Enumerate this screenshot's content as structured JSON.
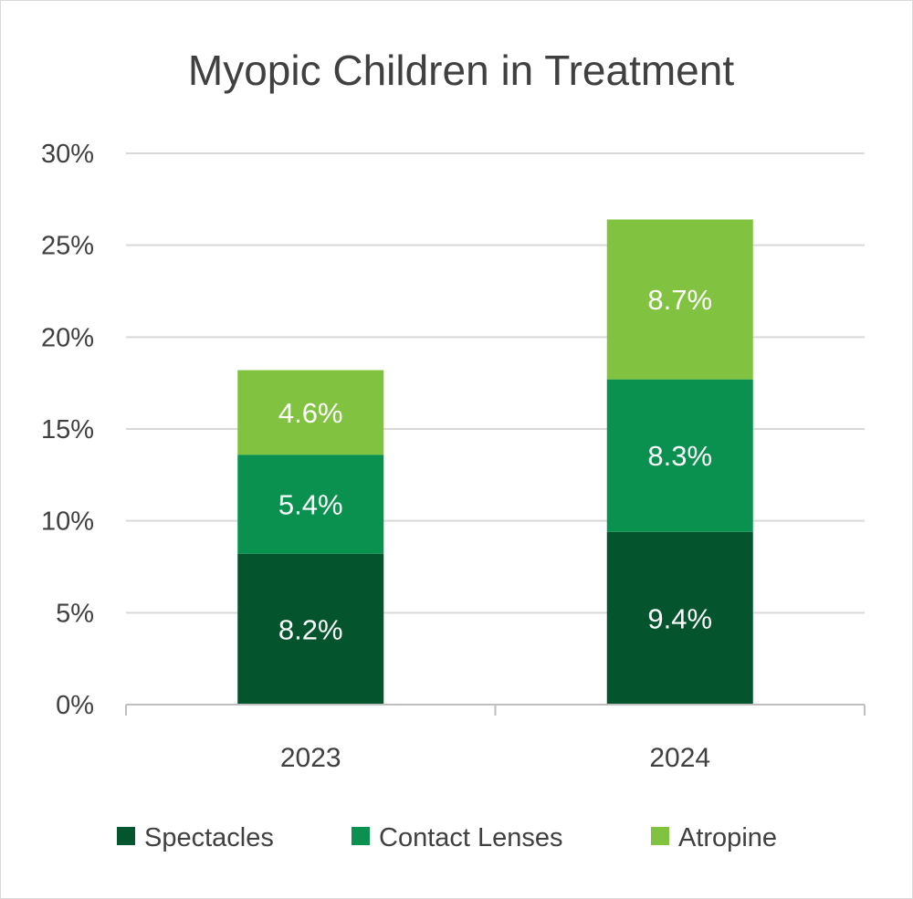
{
  "chart_data": {
    "type": "bar",
    "stacked": true,
    "title": "Myopic Children in Treatment",
    "categories": [
      "2023",
      "2024"
    ],
    "series": [
      {
        "name": "Spectacles",
        "values": [
          8.2,
          9.4
        ],
        "labels": [
          "8.2%",
          "9.4%"
        ],
        "color": "#04552e"
      },
      {
        "name": "Contact Lenses",
        "values": [
          5.4,
          8.3
        ],
        "labels": [
          "5.4%",
          "8.3%"
        ],
        "color": "#0a9150"
      },
      {
        "name": "Atropine",
        "values": [
          4.6,
          8.7
        ],
        "labels": [
          "4.6%",
          "8.7%"
        ],
        "color": "#81c341"
      }
    ],
    "ylim": [
      0,
      30
    ],
    "yticks": [
      0,
      5,
      10,
      15,
      20,
      25,
      30
    ],
    "ytick_labels": [
      "0%",
      "5%",
      "10%",
      "15%",
      "20%",
      "25%",
      "30%"
    ],
    "grid": true,
    "legend": "bottom"
  }
}
